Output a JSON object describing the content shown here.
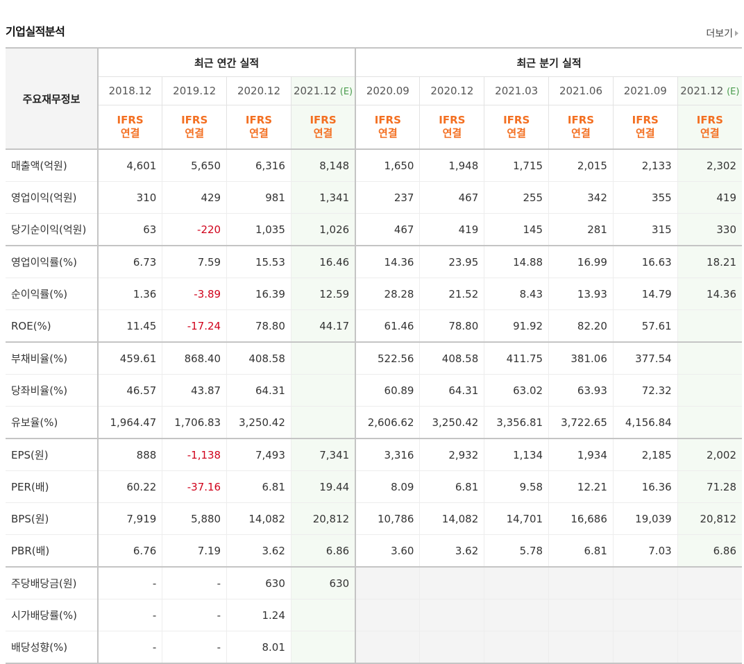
{
  "header": {
    "title": "기업실적분석",
    "more_label": "더보기"
  },
  "table": {
    "label_header": "주요재무정보",
    "annual_header": "최근 연간 실적",
    "quarter_header": "최근 분기 실적",
    "periods": [
      "2018.12",
      "2019.12",
      "2020.12",
      "2021.12",
      "2020.09",
      "2020.12",
      "2021.03",
      "2021.06",
      "2021.09",
      "2021.12"
    ],
    "estimate_mark": "(E)",
    "ifrs_top": "IFRS",
    "ifrs_bottom": "연결",
    "rows": [
      {
        "label": "매출액(억원)",
        "values": [
          "4,601",
          "5,650",
          "6,316",
          "8,148",
          "1,650",
          "1,948",
          "1,715",
          "2,015",
          "2,133",
          "2,302"
        ]
      },
      {
        "label": "영업이익(억원)",
        "values": [
          "310",
          "429",
          "981",
          "1,341",
          "237",
          "467",
          "255",
          "342",
          "355",
          "419"
        ]
      },
      {
        "label": "당기순이익(억원)",
        "values": [
          "63",
          "-220",
          "1,035",
          "1,026",
          "467",
          "419",
          "145",
          "281",
          "315",
          "330"
        ]
      },
      {
        "label": "영업이익률(%)",
        "values": [
          "6.73",
          "7.59",
          "15.53",
          "16.46",
          "14.36",
          "23.95",
          "14.88",
          "16.99",
          "16.63",
          "18.21"
        ]
      },
      {
        "label": "순이익률(%)",
        "values": [
          "1.36",
          "-3.89",
          "16.39",
          "12.59",
          "28.28",
          "21.52",
          "8.43",
          "13.93",
          "14.79",
          "14.36"
        ]
      },
      {
        "label": "ROE(%)",
        "values": [
          "11.45",
          "-17.24",
          "78.80",
          "44.17",
          "61.46",
          "78.80",
          "91.92",
          "82.20",
          "57.61",
          ""
        ]
      },
      {
        "label": "부채비율(%)",
        "values": [
          "459.61",
          "868.40",
          "408.58",
          "",
          "522.56",
          "408.58",
          "411.75",
          "381.06",
          "377.54",
          ""
        ]
      },
      {
        "label": "당좌비율(%)",
        "values": [
          "46.57",
          "43.87",
          "64.31",
          "",
          "60.89",
          "64.31",
          "63.02",
          "63.93",
          "72.32",
          ""
        ]
      },
      {
        "label": "유보율(%)",
        "values": [
          "1,964.47",
          "1,706.83",
          "3,250.42",
          "",
          "2,606.62",
          "3,250.42",
          "3,356.81",
          "3,722.65",
          "4,156.84",
          ""
        ]
      },
      {
        "label": "EPS(원)",
        "values": [
          "888",
          "-1,138",
          "7,493",
          "7,341",
          "3,316",
          "2,932",
          "1,134",
          "1,934",
          "2,185",
          "2,002"
        ]
      },
      {
        "label": "PER(배)",
        "values": [
          "60.22",
          "-37.16",
          "6.81",
          "19.44",
          "8.09",
          "6.81",
          "9.58",
          "12.21",
          "16.36",
          "71.28"
        ]
      },
      {
        "label": "BPS(원)",
        "values": [
          "7,919",
          "5,880",
          "14,082",
          "20,812",
          "10,786",
          "14,082",
          "14,701",
          "16,686",
          "19,039",
          "20,812"
        ]
      },
      {
        "label": "PBR(배)",
        "values": [
          "6.76",
          "7.19",
          "3.62",
          "6.86",
          "3.60",
          "3.62",
          "5.78",
          "6.81",
          "7.03",
          "6.86"
        ]
      },
      {
        "label": "주당배당금(원)",
        "values": [
          "-",
          "-",
          "630",
          "630",
          "",
          "",
          "",
          "",
          "",
          ""
        ]
      },
      {
        "label": "시가배당률(%)",
        "values": [
          "-",
          "-",
          "1.24",
          "",
          "",
          "",
          "",
          "",
          "",
          ""
        ]
      },
      {
        "label": "배당성향(%)",
        "values": [
          "-",
          "-",
          "8.01",
          "",
          "",
          "",
          "",
          "",
          "",
          ""
        ]
      }
    ]
  }
}
